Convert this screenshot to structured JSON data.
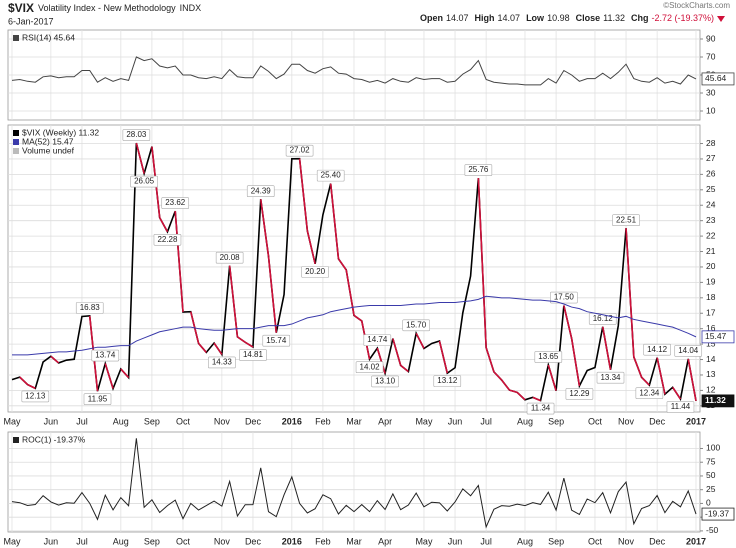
{
  "header": {
    "symbol": "$VIX",
    "name": "Volatility Index - New Methodology",
    "exchange": "INDX",
    "date": "6-Jan-2017",
    "quote": [
      {
        "label": "Open",
        "value": "14.07"
      },
      {
        "label": "High",
        "value": "14.07"
      },
      {
        "label": "Low",
        "value": "10.98"
      },
      {
        "label": "Close",
        "value": "11.32"
      },
      {
        "label": "Chg",
        "value": "-2.72 (-19.37%)"
      }
    ],
    "credit": "©StockCharts.com"
  },
  "chart_data": [
    {
      "type": "line",
      "series": [
        {
          "name": "RSI(14) 45.64",
          "color": "#444444",
          "values": [
            44,
            45,
            43,
            42,
            48,
            49,
            47,
            48,
            48,
            55,
            55,
            42,
            47,
            43,
            46,
            44,
            70,
            66,
            68,
            60,
            58,
            60,
            50,
            50,
            47,
            46,
            48,
            46,
            56,
            48,
            47,
            47,
            60,
            54,
            46,
            51,
            62,
            62,
            55,
            52,
            57,
            59,
            52,
            51,
            46,
            45,
            42,
            44,
            41,
            46,
            43,
            42,
            47,
            45,
            46,
            46,
            42,
            43,
            51,
            56,
            66,
            45,
            42,
            41,
            40,
            40,
            39,
            39,
            39,
            46,
            41,
            55,
            50,
            43,
            46,
            46,
            52,
            46,
            53,
            62,
            46,
            43,
            42,
            47,
            41,
            43,
            40,
            50,
            45.64
          ]
        }
      ],
      "ylim": [
        0,
        100
      ],
      "yticks": [
        10,
        30,
        50,
        70,
        90
      ],
      "grid": true
    },
    {
      "type": "line",
      "series": [
        {
          "name": "$VIX (Weekly) 11.32",
          "color": "#000000",
          "down_color": "#d0103a",
          "values": [
            12.7,
            12.86,
            12.38,
            12.13,
            13.84,
            14.21,
            13.78,
            13.96,
            14.02,
            16.79,
            16.83,
            11.95,
            13.74,
            12.12,
            13.39,
            12.83,
            28.03,
            26.05,
            27.8,
            23.2,
            22.28,
            23.62,
            17.08,
            17.1,
            15.05,
            14.46,
            15.07,
            14.33,
            20.08,
            15.47,
            15.12,
            14.81,
            24.39,
            20.7,
            15.74,
            18.21,
            27.01,
            27.02,
            22.34,
            20.2,
            23.38,
            25.4,
            20.53,
            19.81,
            16.86,
            16.5,
            14.02,
            14.74,
            13.1,
            15.36,
            13.62,
            13.22,
            15.7,
            14.72,
            15.04,
            15.2,
            13.12,
            13.47,
            17.03,
            19.41,
            25.76,
            14.77,
            13.2,
            12.67,
            12.02,
            11.87,
            11.39,
            11.55,
            11.34,
            13.65,
            11.98,
            17.5,
            15.37,
            12.29,
            13.29,
            13.48,
            16.12,
            13.34,
            16.19,
            22.51,
            14.17,
            12.85,
            12.34,
            14.12,
            11.75,
            12.2,
            11.44,
            14.04,
            11.32
          ],
          "value_labels": [
            null,
            null,
            null,
            "12.13",
            null,
            null,
            null,
            null,
            null,
            null,
            "16.83",
            "11.95",
            "13.74",
            null,
            null,
            null,
            "28.03",
            "26.05",
            null,
            null,
            "22.28",
            "23.62",
            null,
            null,
            null,
            null,
            null,
            "14.33",
            "20.08",
            null,
            null,
            "14.81",
            "24.39",
            null,
            "15.74",
            null,
            null,
            "27.02",
            null,
            "20.20",
            null,
            "25.40",
            null,
            null,
            null,
            null,
            "14.02",
            "14.74",
            "13.10",
            null,
            null,
            null,
            "15.70",
            null,
            null,
            null,
            "13.12",
            null,
            null,
            null,
            "25.76",
            null,
            null,
            null,
            null,
            null,
            null,
            null,
            "11.34",
            "13.65",
            null,
            "17.50",
            null,
            "12.29",
            null,
            null,
            "16.12",
            "13.34",
            null,
            "22.51",
            null,
            null,
            "12.34",
            "14.12",
            null,
            null,
            "11.44",
            "14.04",
            null
          ]
        },
        {
          "name": "MA(52) 15.47",
          "color": "#3a3aaa",
          "values": [
            14.3,
            14.3,
            14.3,
            14.35,
            14.4,
            14.45,
            14.5,
            14.5,
            14.55,
            14.6,
            14.7,
            14.8,
            14.8,
            14.85,
            14.9,
            14.9,
            15.2,
            15.4,
            15.6,
            15.8,
            15.9,
            16.0,
            16.1,
            16.1,
            16.0,
            15.95,
            15.9,
            15.9,
            15.95,
            16.0,
            16.0,
            16.0,
            16.1,
            16.2,
            16.2,
            16.2,
            16.3,
            16.5,
            16.7,
            16.8,
            16.9,
            17.1,
            17.2,
            17.3,
            17.4,
            17.45,
            17.5,
            17.5,
            17.5,
            17.5,
            17.5,
            17.55,
            17.6,
            17.6,
            17.65,
            17.7,
            17.7,
            17.7,
            17.75,
            17.8,
            17.9,
            18.1,
            18.05,
            18.0,
            18.0,
            17.95,
            17.9,
            17.85,
            17.85,
            17.8,
            17.75,
            17.6,
            17.4,
            17.3,
            17.1,
            17.0,
            16.9,
            16.8,
            16.7,
            16.8,
            16.6,
            16.5,
            16.4,
            16.3,
            16.2,
            16.1,
            15.9,
            15.7,
            15.47
          ]
        }
      ],
      "extra_legend": [
        "Volume undef"
      ],
      "categories": [
        "May",
        null,
        null,
        null,
        null,
        "Jun",
        null,
        null,
        null,
        "Jul",
        null,
        null,
        null,
        null,
        "Aug",
        null,
        null,
        null,
        "Sep",
        null,
        null,
        null,
        "Oct",
        null,
        null,
        null,
        null,
        "Nov",
        null,
        null,
        null,
        "Dec",
        null,
        null,
        null,
        null,
        "2016",
        null,
        null,
        null,
        "Feb",
        null,
        null,
        null,
        "Mar",
        null,
        null,
        null,
        "Apr",
        null,
        null,
        null,
        null,
        "May",
        null,
        null,
        null,
        "Jun",
        null,
        null,
        null,
        "Jul",
        null,
        null,
        null,
        null,
        "Aug",
        null,
        null,
        null,
        "Sep",
        null,
        null,
        null,
        null,
        "Oct",
        null,
        null,
        null,
        "Nov",
        null,
        null,
        null,
        "Dec",
        null,
        null,
        null,
        null,
        "2017"
      ],
      "ylim": [
        10.6,
        29.2
      ],
      "yticks": [
        11,
        12,
        13,
        14,
        15,
        16,
        17,
        18,
        19,
        20,
        21,
        22,
        23,
        24,
        25,
        26,
        27,
        28
      ],
      "grid": true
    },
    {
      "type": "line",
      "series": [
        {
          "name": "ROC(1) -19.37%",
          "color": "#222222",
          "values": [
            3.3,
            1.3,
            -3.7,
            -2.0,
            14.1,
            2.7,
            -3.0,
            1.3,
            0.4,
            19.8,
            0.2,
            -29.0,
            15.0,
            -11.8,
            10.5,
            -4.2,
            118.5,
            -7.1,
            6.7,
            -16.5,
            -4.0,
            6.0,
            -27.7,
            0.1,
            -12.0,
            -3.9,
            4.2,
            -4.9,
            40.1,
            -23.0,
            -2.3,
            -2.1,
            64.7,
            -15.1,
            -24.0,
            15.7,
            48.3,
            0.0,
            -17.3,
            -9.6,
            15.7,
            8.6,
            -19.2,
            -3.5,
            -14.9,
            -2.1,
            -15.0,
            5.1,
            -11.1,
            17.3,
            -11.3,
            -2.9,
            18.8,
            -6.2,
            2.2,
            1.1,
            -13.7,
            2.7,
            26.4,
            14.0,
            32.7,
            -42.7,
            -10.6,
            -4.0,
            -5.1,
            -1.2,
            -4.0,
            1.4,
            -1.8,
            20.4,
            -12.2,
            46.1,
            -12.2,
            -20.0,
            8.1,
            1.4,
            19.6,
            -17.2,
            21.4,
            39.0,
            -37.1,
            -9.3,
            -4.0,
            14.4,
            -16.8,
            3.8,
            -6.2,
            22.7,
            -19.37
          ]
        }
      ],
      "categories": [
        "May",
        null,
        null,
        null,
        null,
        "Jun",
        null,
        null,
        null,
        "Jul",
        null,
        null,
        null,
        null,
        "Aug",
        null,
        null,
        null,
        "Sep",
        null,
        null,
        null,
        "Oct",
        null,
        null,
        null,
        null,
        "Nov",
        null,
        null,
        null,
        "Dec",
        null,
        null,
        null,
        null,
        "2016",
        null,
        null,
        null,
        "Feb",
        null,
        null,
        null,
        "Mar",
        null,
        null,
        null,
        "Apr",
        null,
        null,
        null,
        null,
        "May",
        null,
        null,
        null,
        "Jun",
        null,
        null,
        null,
        "Jul",
        null,
        null,
        null,
        null,
        "Aug",
        null,
        null,
        null,
        "Sep",
        null,
        null,
        null,
        null,
        "Oct",
        null,
        null,
        null,
        "Nov",
        null,
        null,
        null,
        "Dec",
        null,
        null,
        null,
        null,
        "2017"
      ],
      "ylim": [
        -52,
        130
      ],
      "yticks": [
        -50,
        -25,
        0,
        25,
        50,
        75,
        100
      ],
      "grid": true
    }
  ]
}
